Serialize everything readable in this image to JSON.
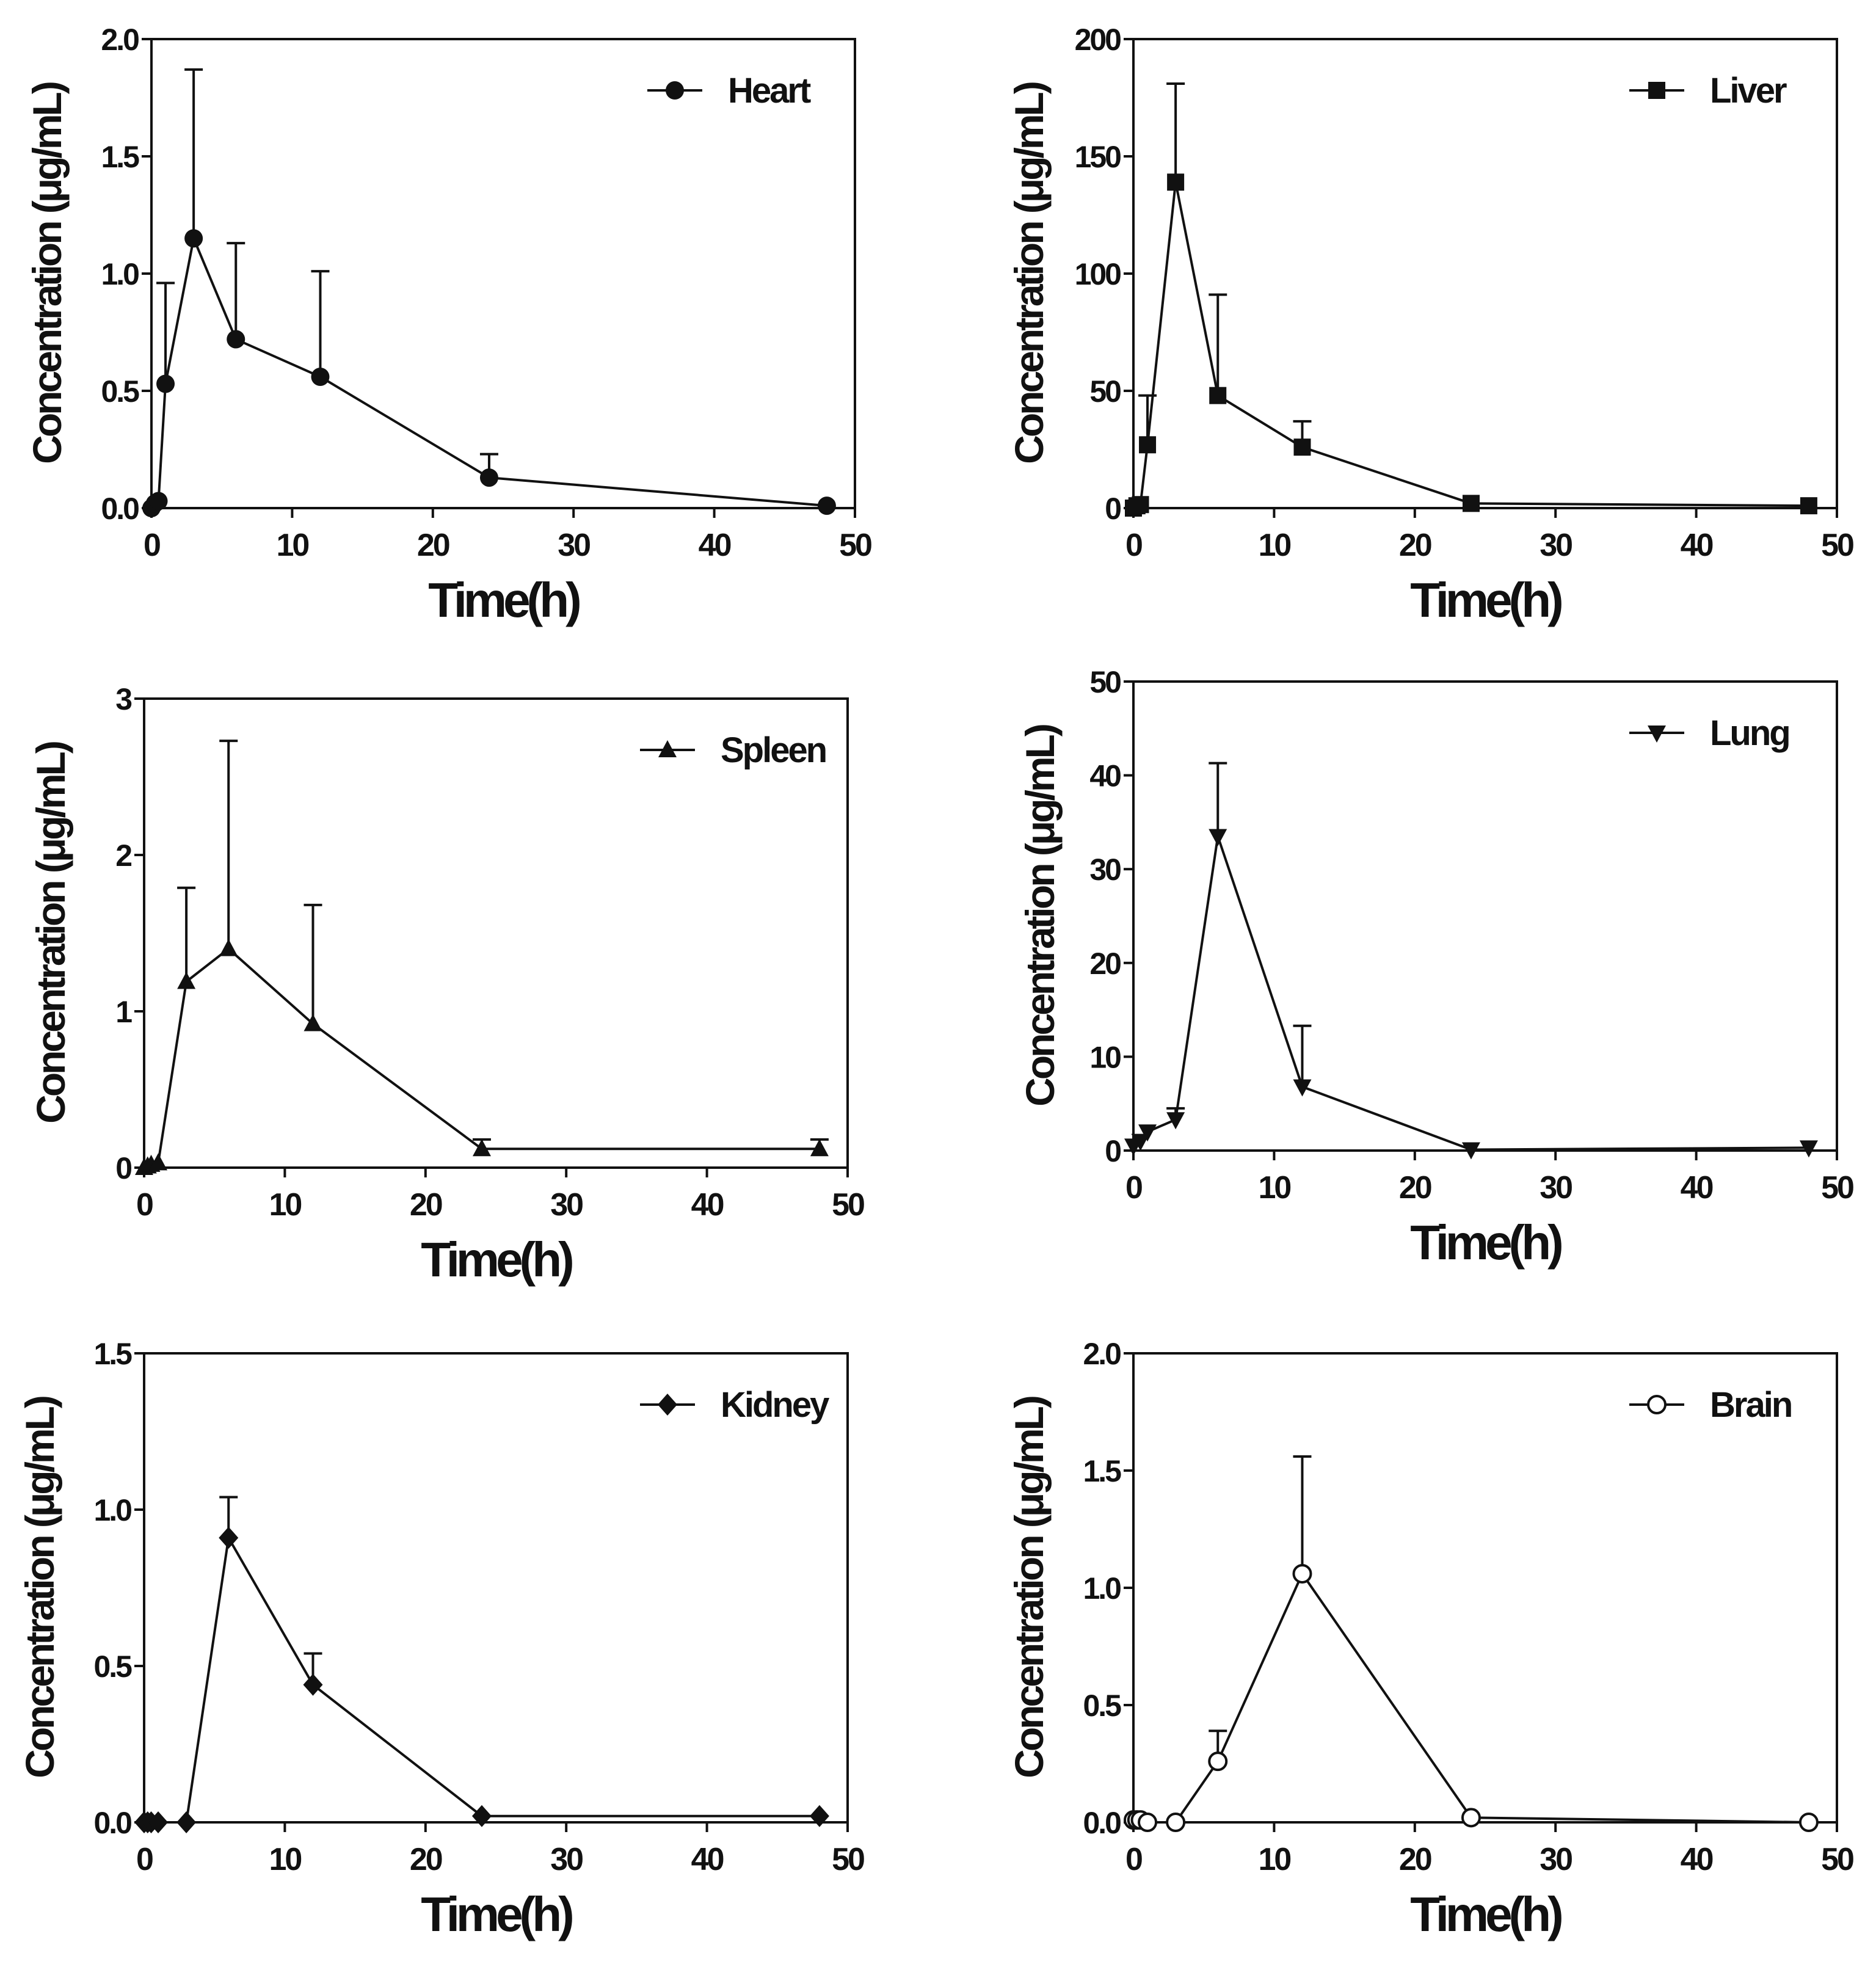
{
  "figure": {
    "ink_color": "#111111",
    "background": "#ffffff"
  },
  "chart_data": [
    {
      "type": "line",
      "panel": "heart",
      "legend": "Heart",
      "legend_position": "top-right",
      "marker": "circle",
      "xlabel": "Time(h)",
      "ylabel": "Concentration (μg/mL)",
      "xlim": [
        0,
        50
      ],
      "ylim": [
        0,
        2.0
      ],
      "xticks": [
        0,
        10,
        20,
        30,
        40,
        50
      ],
      "xtick_labels": [
        "0",
        "10",
        "20",
        "30",
        "40",
        "50"
      ],
      "yticks": [
        0,
        0.5,
        1.0,
        1.5,
        2.0
      ],
      "ytick_labels": [
        "0.0",
        "0.5",
        "1.0",
        "1.5",
        "2.0"
      ],
      "x": [
        0,
        0.25,
        0.5,
        1,
        3,
        6,
        12,
        24,
        48
      ],
      "y": [
        0.0,
        0.02,
        0.03,
        0.53,
        1.15,
        0.72,
        0.56,
        0.13,
        0.01
      ],
      "error": [
        0,
        0,
        0,
        0.43,
        0.72,
        0.41,
        0.45,
        0.1,
        0
      ]
    },
    {
      "type": "line",
      "panel": "liver",
      "legend": "Liver",
      "legend_position": "top-right",
      "marker": "square",
      "xlabel": "Time(h)",
      "ylabel": "Concentration (μg/mL)",
      "xlim": [
        0,
        50
      ],
      "ylim": [
        0,
        200
      ],
      "xticks": [
        0,
        10,
        20,
        30,
        40,
        50
      ],
      "xtick_labels": [
        "0",
        "10",
        "20",
        "30",
        "40",
        "50"
      ],
      "yticks": [
        0,
        50,
        100,
        150,
        200
      ],
      "ytick_labels": [
        "0",
        "50",
        "100",
        "150",
        "200"
      ],
      "x": [
        0,
        0.25,
        0.5,
        1,
        3,
        6,
        12,
        24,
        48
      ],
      "y": [
        0,
        1,
        1.5,
        27,
        139,
        48,
        26,
        2,
        1
      ],
      "error": [
        0,
        0,
        0,
        21,
        42,
        43,
        11,
        0,
        0
      ]
    },
    {
      "type": "line",
      "panel": "spleen",
      "legend": "Spleen",
      "legend_position": "top-right",
      "marker": "triangle-up",
      "xlabel": "Time(h)",
      "ylabel": "Concentration (μg/mL)",
      "xlim": [
        0,
        50
      ],
      "ylim": [
        0,
        3
      ],
      "xticks": [
        0,
        10,
        20,
        30,
        40,
        50
      ],
      "xtick_labels": [
        "0",
        "10",
        "20",
        "30",
        "40",
        "50"
      ],
      "yticks": [
        0,
        1,
        2,
        3
      ],
      "ytick_labels": [
        "0",
        "1",
        "2",
        "3"
      ],
      "x": [
        0,
        0.25,
        0.5,
        1,
        3,
        6,
        12,
        24,
        48
      ],
      "y": [
        0.0,
        0.01,
        0.02,
        0.03,
        1.19,
        1.4,
        0.92,
        0.12,
        0.12
      ],
      "error": [
        0,
        0,
        0,
        0,
        0.6,
        1.33,
        0.76,
        0.06,
        0.06
      ]
    },
    {
      "type": "line",
      "panel": "lung",
      "legend": "Lung",
      "legend_position": "top-right",
      "marker": "triangle-down",
      "xlabel": "Time(h)",
      "ylabel": "Concentration (μg/mL)",
      "xlim": [
        0,
        50
      ],
      "ylim": [
        0,
        50
      ],
      "xticks": [
        0,
        10,
        20,
        30,
        40,
        50
      ],
      "xtick_labels": [
        "0",
        "10",
        "20",
        "30",
        "40",
        "50"
      ],
      "yticks": [
        0,
        10,
        20,
        30,
        40,
        50
      ],
      "ytick_labels": [
        "0",
        "10",
        "20",
        "30",
        "40",
        "50"
      ],
      "x": [
        0,
        0.5,
        1,
        3,
        6,
        12,
        24,
        48
      ],
      "y": [
        0.5,
        1.0,
        2.0,
        3.3,
        33.5,
        6.8,
        0.1,
        0.3
      ],
      "error": [
        0,
        0,
        0,
        1.2,
        7.8,
        6.5,
        0,
        0
      ]
    },
    {
      "type": "line",
      "panel": "kidney",
      "legend": "Kidney",
      "legend_position": "top-right",
      "marker": "diamond",
      "xlabel": "Time(h)",
      "ylabel": "Concentration (μg/mL)",
      "xlim": [
        0,
        50
      ],
      "ylim": [
        0,
        1.5
      ],
      "xticks": [
        0,
        10,
        20,
        30,
        40,
        50
      ],
      "xtick_labels": [
        "0",
        "10",
        "20",
        "30",
        "40",
        "50"
      ],
      "yticks": [
        0,
        0.5,
        1.0,
        1.5
      ],
      "ytick_labels": [
        "0.0",
        "0.5",
        "1.0",
        "1.5"
      ],
      "x": [
        0,
        0.25,
        0.5,
        1,
        3,
        6,
        12,
        24,
        48
      ],
      "y": [
        0.0,
        0.0,
        0.0,
        0.0,
        0.0,
        0.91,
        0.44,
        0.02,
        0.02
      ],
      "error": [
        0,
        0,
        0,
        0,
        0,
        0.13,
        0.1,
        0,
        0
      ]
    },
    {
      "type": "line",
      "panel": "brain",
      "legend": "Brain",
      "legend_position": "top-right",
      "marker": "open-circle",
      "xlabel": "Time(h)",
      "ylabel": "Concentration (μg/mL)",
      "xlim": [
        0,
        50
      ],
      "ylim": [
        0,
        2.0
      ],
      "xticks": [
        0,
        10,
        20,
        30,
        40,
        50
      ],
      "xtick_labels": [
        "0",
        "10",
        "20",
        "30",
        "40",
        "50"
      ],
      "yticks": [
        0,
        0.5,
        1.0,
        1.5,
        2.0
      ],
      "ytick_labels": [
        "0.0",
        "0.5",
        "1.0",
        "1.5",
        "2.0"
      ],
      "x": [
        0,
        0.25,
        0.5,
        1,
        3,
        6,
        12,
        24,
        48
      ],
      "y": [
        0.01,
        0.01,
        0.01,
        0.0,
        0.0,
        0.26,
        1.06,
        0.02,
        0.0
      ],
      "error": [
        0,
        0,
        0,
        0,
        0,
        0.13,
        0.5,
        0,
        0
      ]
    }
  ]
}
